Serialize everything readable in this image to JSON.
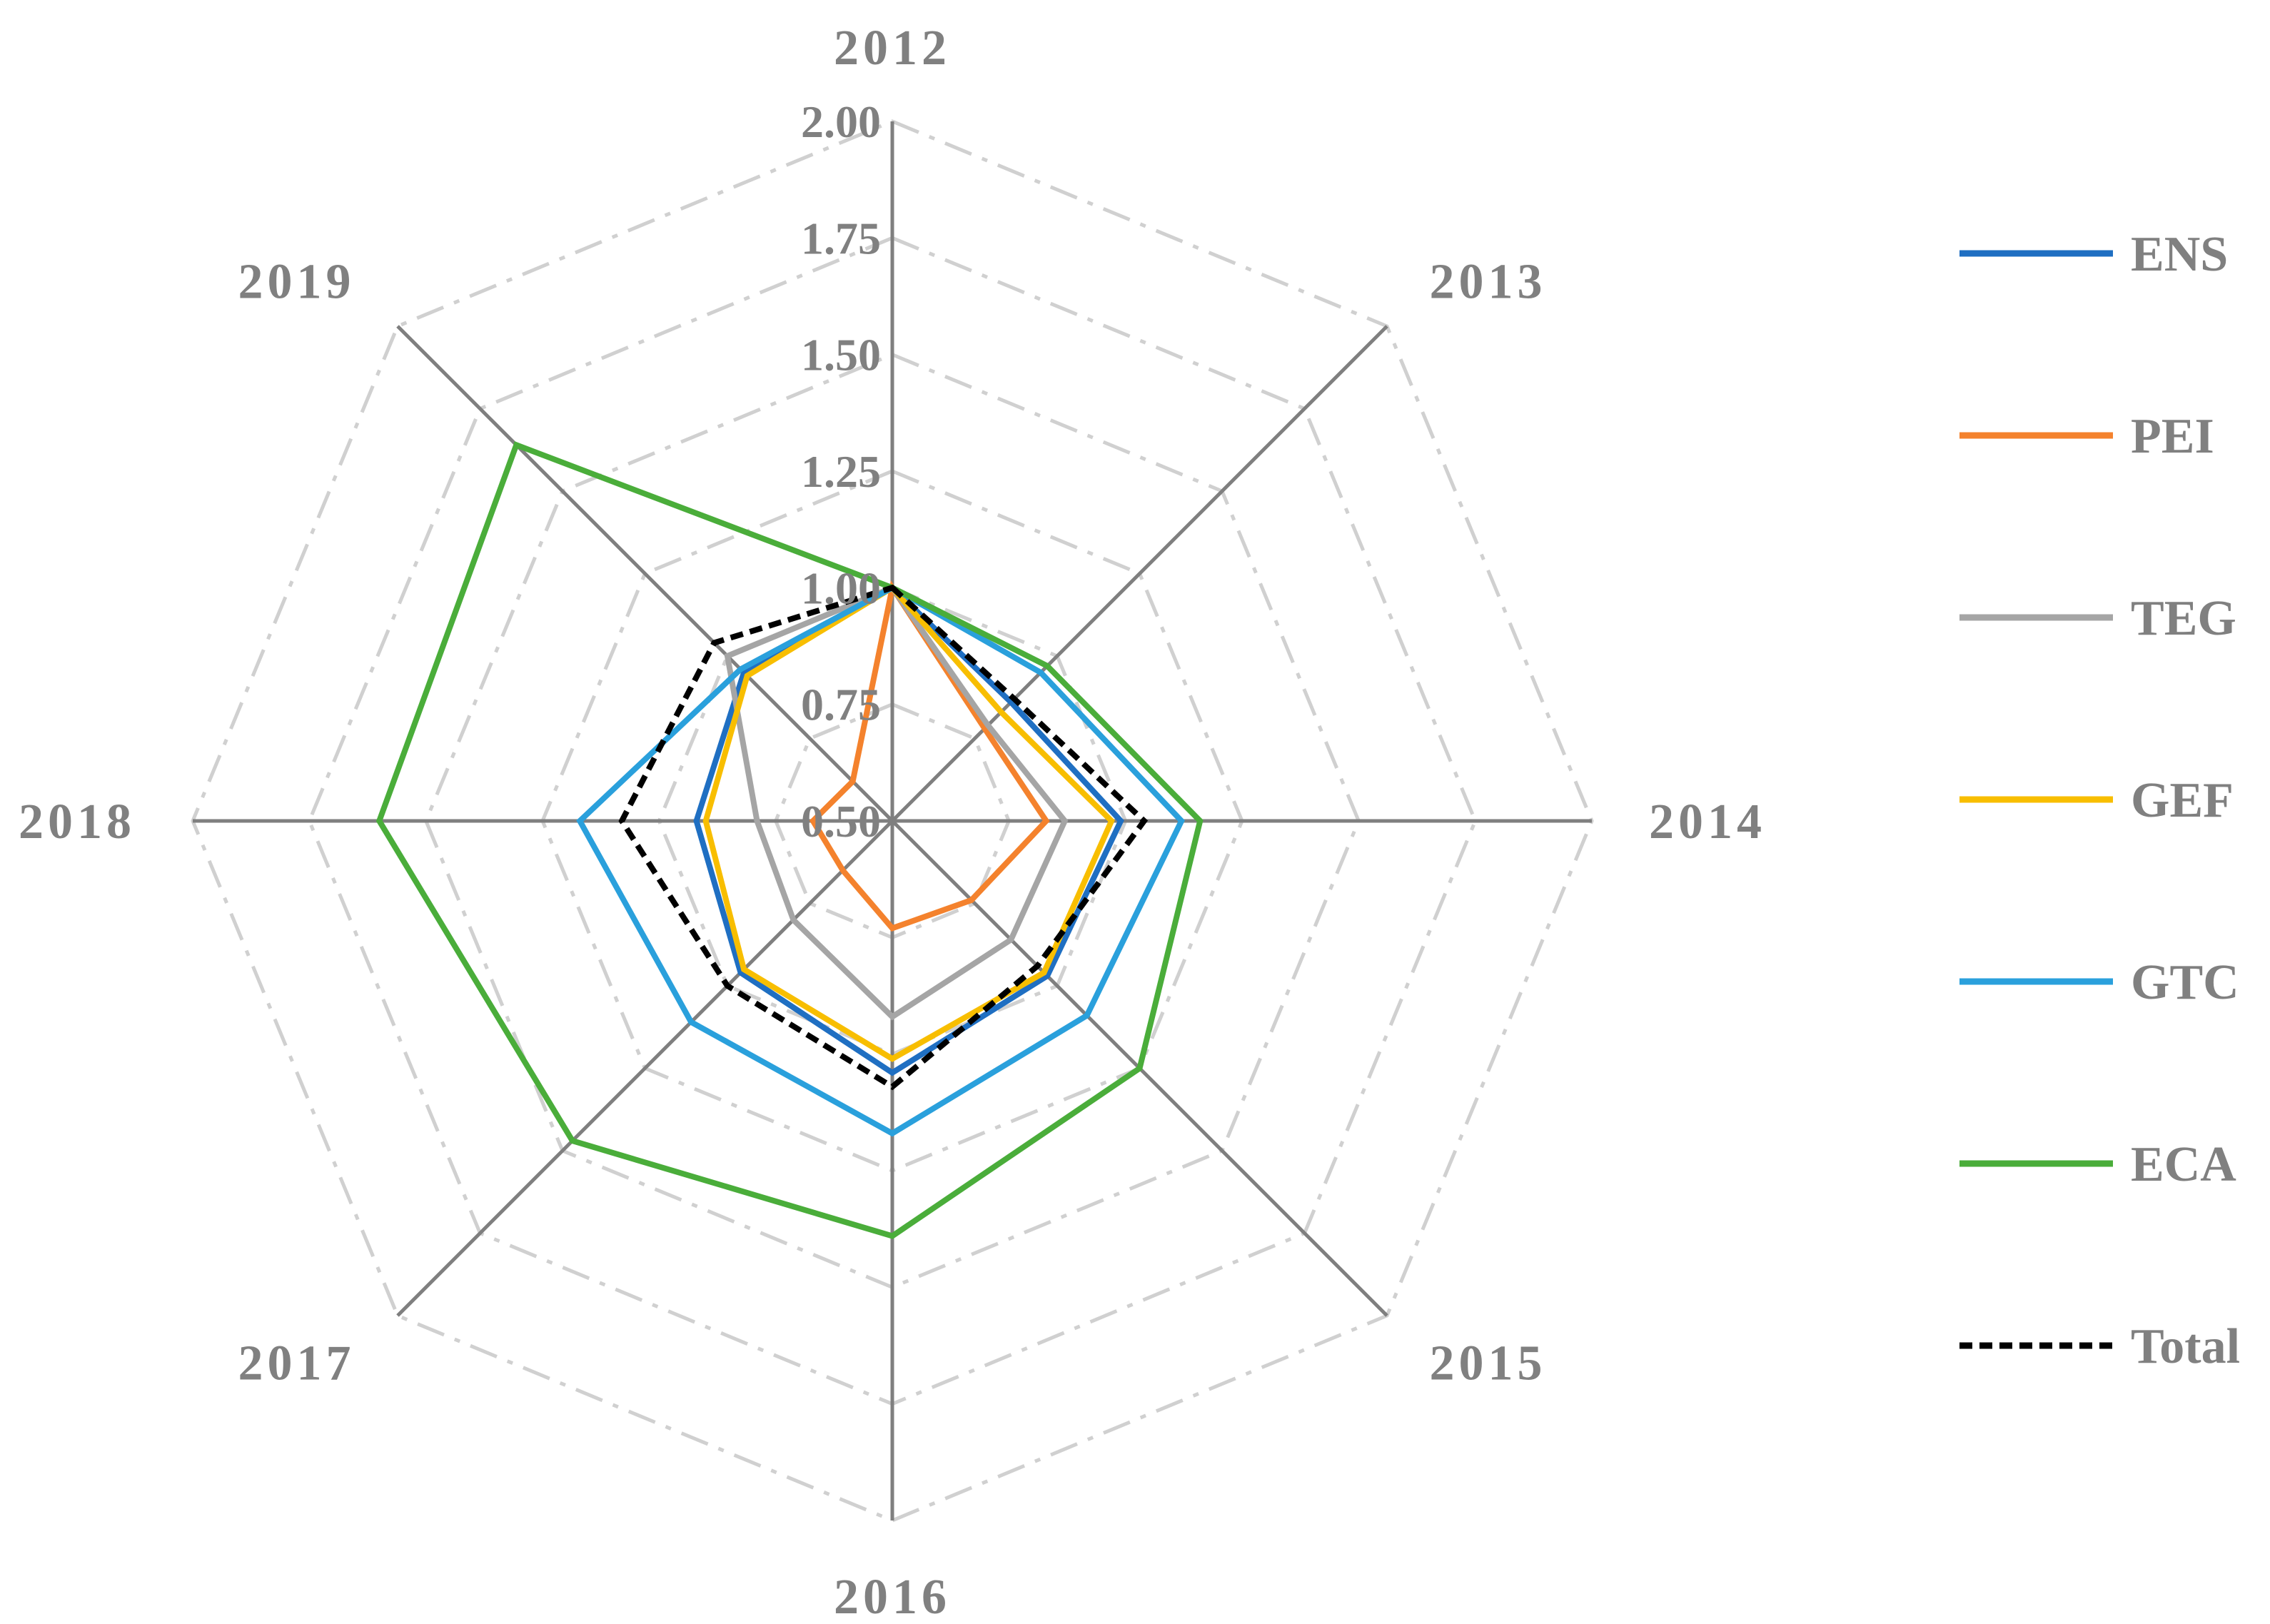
{
  "chart_data": {
    "type": "radar",
    "title": "",
    "categories": [
      "2012",
      "2013",
      "2014",
      "2015",
      "2016",
      "2017",
      "2018",
      "2019"
    ],
    "rlim": [
      0.5,
      2.0
    ],
    "ticks": [
      "0.50",
      "0.75",
      "1.00",
      "1.25",
      "1.50",
      "1.75",
      "2.00"
    ],
    "tick_values": [
      0.5,
      0.75,
      1.0,
      1.25,
      1.5,
      1.75,
      2.0
    ],
    "legend_position": "right",
    "series": [
      {
        "name": "ENS",
        "color": "#1f6fc2",
        "dash": "solid",
        "values": [
          1.0,
          0.86,
          0.99,
          0.97,
          1.04,
          0.96,
          0.92,
          0.95
        ]
      },
      {
        "name": "PEI",
        "color": "#f4822d",
        "dash": "solid",
        "values": [
          1.0,
          0.78,
          0.83,
          0.74,
          0.73,
          0.65,
          0.67,
          0.62
        ]
      },
      {
        "name": "TEG",
        "color": "#a5a5a5",
        "dash": "solid",
        "values": [
          1.0,
          0.79,
          0.87,
          0.86,
          0.92,
          0.8,
          0.79,
          1.0
        ]
      },
      {
        "name": "GEF",
        "color": "#f8be00",
        "dash": "solid",
        "values": [
          1.0,
          0.83,
          0.97,
          0.96,
          1.01,
          0.95,
          0.9,
          0.94
        ]
      },
      {
        "name": "GTC",
        "color": "#2aa0dc",
        "dash": "solid",
        "values": [
          1.0,
          0.95,
          1.12,
          1.09,
          1.17,
          1.11,
          1.17,
          0.96
        ]
      },
      {
        "name": "ECA",
        "color": "#4aad3a",
        "dash": "solid",
        "values": [
          1.0,
          0.97,
          1.16,
          1.25,
          1.39,
          1.47,
          1.6,
          1.64
        ]
      },
      {
        "name": "Total",
        "color": "#000000",
        "dash": "dashed",
        "values": [
          1.0,
          0.87,
          1.04,
          0.94,
          1.07,
          1.0,
          1.08,
          1.04
        ]
      }
    ]
  }
}
